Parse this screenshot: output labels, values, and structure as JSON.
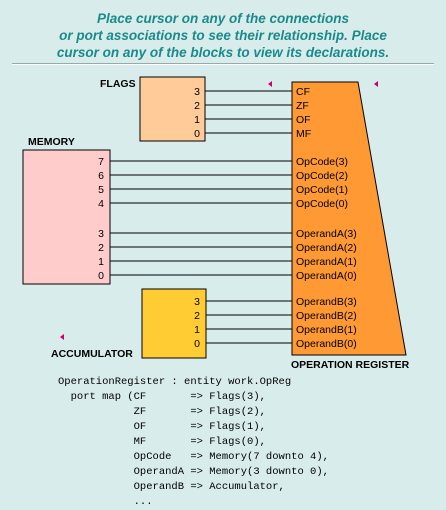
{
  "header": {
    "line1": "Place cursor on any of the connections",
    "line2": "or port associations to see their relationship. Place",
    "line3": "cursor on any of the blocks to view its declarations."
  },
  "blocks": {
    "flags": {
      "title": "FLAGS",
      "pins": [
        "3",
        "2",
        "1",
        "0"
      ],
      "color": "#ffcc99"
    },
    "memory": {
      "title": "MEMORY",
      "pins": [
        "7",
        "6",
        "5",
        "4",
        "3",
        "2",
        "1",
        "0"
      ],
      "color": "#ffcccc"
    },
    "accumulator": {
      "title": "ACCUMULATOR",
      "pins": [
        "3",
        "2",
        "1",
        "0"
      ],
      "color": "#ffcc33"
    },
    "operation_register": {
      "title": "OPERATION REGISTER",
      "ports": [
        "CF",
        "ZF",
        "OF",
        "MF",
        "OpCode(3)",
        "OpCode(2)",
        "OpCode(1)",
        "OpCode(0)",
        "OperandA(3)",
        "OperandA(2)",
        "OperandA(1)",
        "OperandA(0)",
        "OperandB(3)",
        "OperandB(2)",
        "OperandB(1)",
        "OperandB(0)"
      ],
      "color": "#ff9933"
    }
  },
  "code": {
    "lines": [
      "OperationRegister : entity work.OpReg",
      "  port map (CF       => Flags(3),",
      "            ZF       => Flags(2),",
      "            OF       => Flags(1),",
      "            MF       => Flags(0),",
      "            OpCode   => Memory(7 downto 4),",
      "            OperandA => Memory(3 downto 0),",
      "            OperandB => Accumulator,",
      "            ..."
    ]
  }
}
